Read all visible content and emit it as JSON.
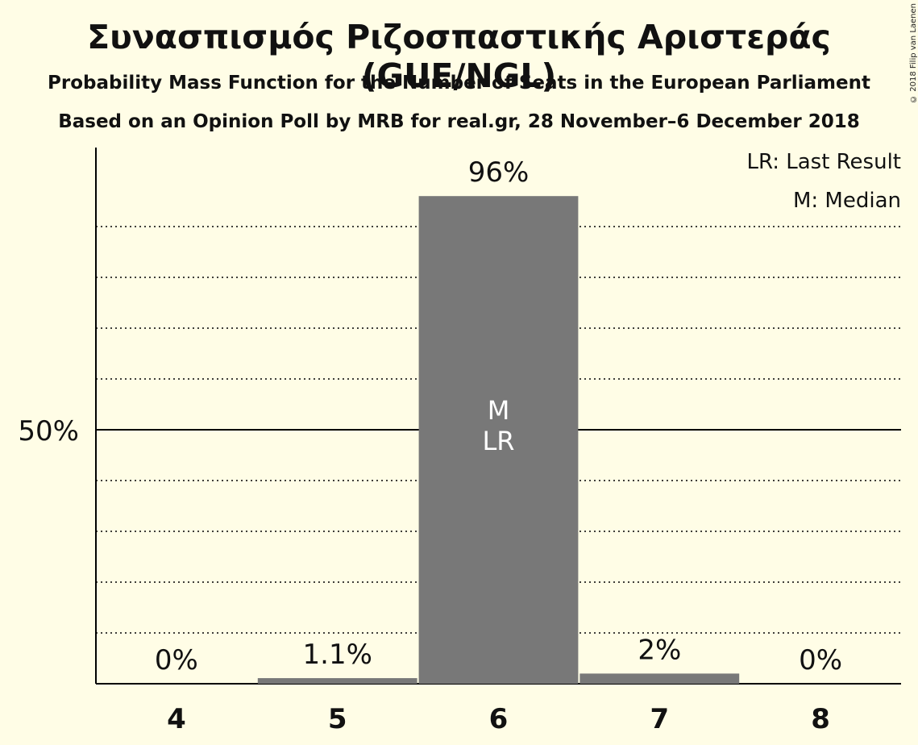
{
  "header": {
    "title": "Συνασπισμός Ριζοσπαστικής Αριστεράς (GUE/NGL)",
    "subtitle": "Probability Mass Function for the Number of Seats in the European Parliament",
    "source": "Based on an Opinion Poll by MRB for real.gr, 28 November–6 December 2018",
    "copyright": "© 2018 Filip van Laenen"
  },
  "legend": {
    "last_result": "LR: Last Result",
    "median": "M: Median"
  },
  "colors": {
    "background": "#fffde6",
    "bar": "#787878",
    "grid": "#000000"
  },
  "chart_data": {
    "type": "bar",
    "categories": [
      "4",
      "5",
      "6",
      "7",
      "8"
    ],
    "values": [
      0,
      1.1,
      96,
      2,
      0
    ],
    "value_labels": [
      "0%",
      "1.1%",
      "96%",
      "2%",
      "0%"
    ],
    "ylim": [
      0,
      105
    ],
    "y_tick_label": "50%",
    "y_tick_value": 50,
    "grid": "dotted every 10%, solid at 50%",
    "legend_position": "top-right",
    "bar_annotations": [
      {
        "category": "6",
        "lines": [
          "M",
          "LR"
        ]
      }
    ]
  }
}
